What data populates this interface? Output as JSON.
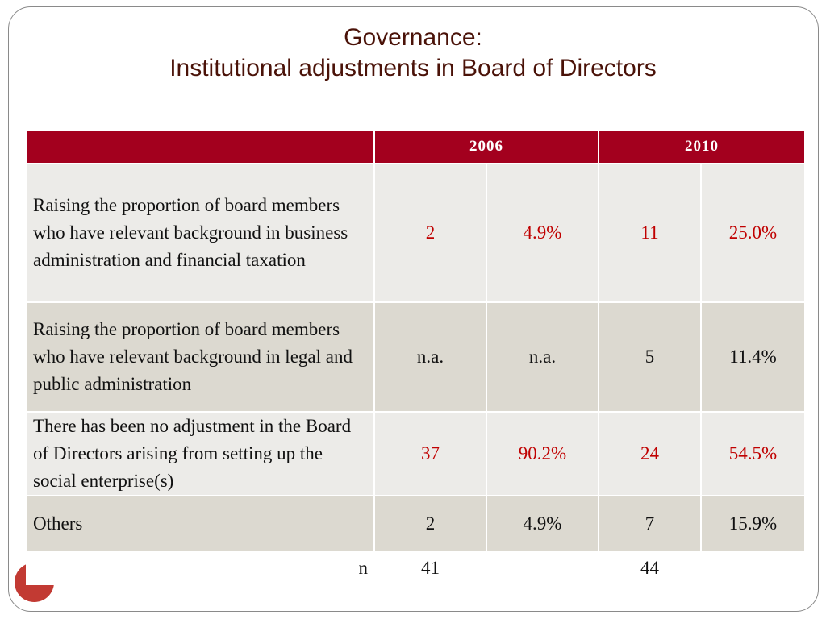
{
  "title": {
    "line1": "Governance:",
    "line2": "Institutional adjustments in Board of Directors"
  },
  "table": {
    "header": {
      "year1": "2006",
      "year2": "2010"
    },
    "rows": [
      {
        "label": "Raising the proportion of board members who have relevant background in business administration and financial taxation",
        "v2006_n": "2",
        "v2006_pct": "4.9%",
        "v2010_n": "11",
        "v2010_pct": "25.0%"
      },
      {
        "label": "Raising the proportion of board members who have relevant background in legal and public administration",
        "v2006_n": "n.a.",
        "v2006_pct": "n.a.",
        "v2010_n": "5",
        "v2010_pct": "11.4%"
      },
      {
        "label": "There has been no adjustment in the Board of Directors arising from setting up the social enterprise(s)",
        "v2006_n": "37",
        "v2006_pct": "90.2%",
        "v2010_n": "24",
        "v2010_pct": "54.5%"
      },
      {
        "label": "Others",
        "v2006_n": "2",
        "v2006_pct": "4.9%",
        "v2010_n": "7",
        "v2010_pct": "15.9%"
      }
    ],
    "total": {
      "label": "n",
      "v2006_n": "41",
      "v2010_n": "44"
    }
  },
  "colors": {
    "header_bg": "#a3001e",
    "highlight_text": "#c00000",
    "title_text": "#4a1208",
    "row_light": "#ecebe8",
    "row_dark": "#dcd9d0",
    "badge": "#c23a33"
  }
}
